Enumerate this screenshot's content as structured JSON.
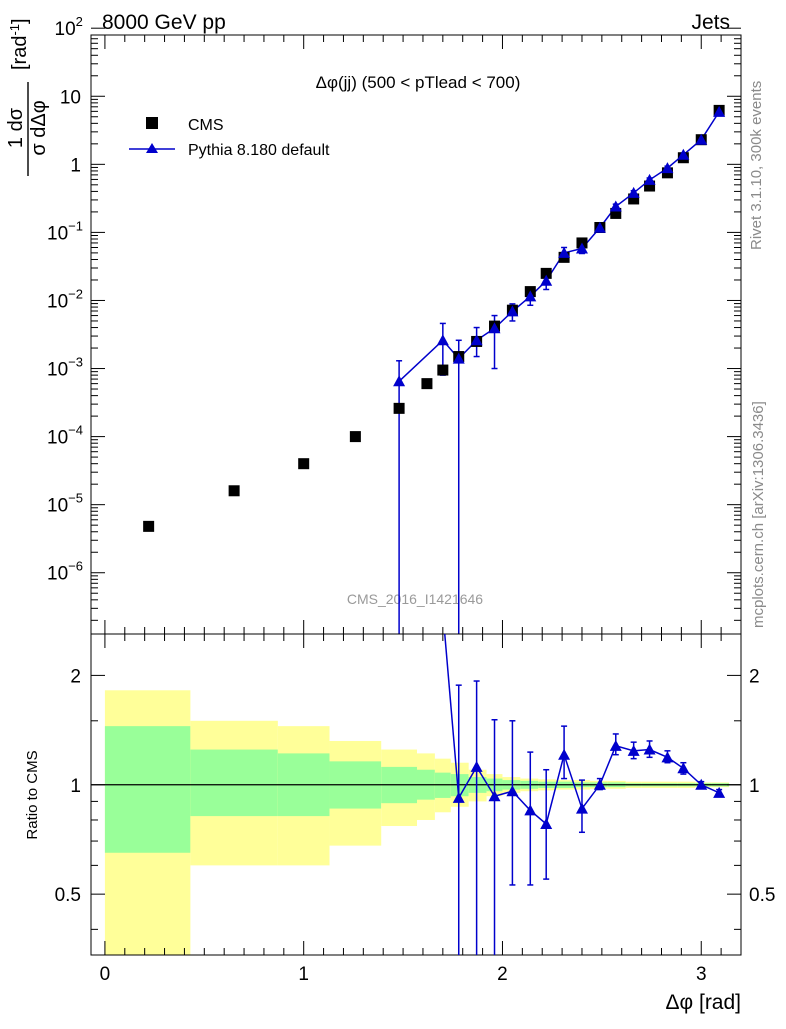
{
  "header": {
    "left": "8000 GeV pp",
    "right": "Jets"
  },
  "side_labels": {
    "rivet": "Rivet 3.1.10,  300k events",
    "mcplots": "mcplots.cern.ch [arXiv:1306.3436]"
  },
  "watermark": "CMS_2016_I1421646",
  "colors": {
    "cms": "#000000",
    "pythia": "#0000cc",
    "band_outer": "#ffff99",
    "band_inner": "#99ff99"
  },
  "chart_data": [
    {
      "type": "scatter",
      "title": "Δφ(jj) (500 < pTlead <  700)",
      "ylabel_parts": {
        "frac_num": "1 dσ",
        "frac_den": "σ dΔφ",
        "unit": "[rad",
        "unit_exp": "-1",
        "unit_close": "]"
      },
      "yscale": "log",
      "xlim": [
        -0.07,
        3.2
      ],
      "ylim_log10": [
        -6.9,
        1.9
      ],
      "y_ticks": [
        {
          "v": -6,
          "label": "10",
          "exp": "−6"
        },
        {
          "v": -5,
          "label": "10",
          "exp": "−5"
        },
        {
          "v": -4,
          "label": "10",
          "exp": "−4"
        },
        {
          "v": -3,
          "label": "10",
          "exp": "−3"
        },
        {
          "v": -2,
          "label": "10",
          "exp": "−2"
        },
        {
          "v": -1,
          "label": "10",
          "exp": "−1"
        },
        {
          "v": 0,
          "label": "1",
          "exp": ""
        },
        {
          "v": 1,
          "label": "10",
          "exp": ""
        },
        {
          "v": 2,
          "label": "10",
          "exp": "2"
        }
      ],
      "legend": [
        {
          "name": "CMS",
          "marker": "square"
        },
        {
          "name": "Pythia 8.180 default",
          "marker": "triangle"
        }
      ],
      "legend_position": "top-left",
      "series": [
        {
          "name": "CMS",
          "x": [
            0.22,
            0.65,
            1.0,
            1.26,
            1.48,
            1.62,
            1.7,
            1.78,
            1.87,
            1.96,
            2.05,
            2.14,
            2.22,
            2.31,
            2.4,
            2.49,
            2.57,
            2.66,
            2.74,
            2.83,
            2.91,
            3.0,
            3.09
          ],
          "y": [
            4.8e-06,
            1.6e-05,
            4e-05,
            0.0001,
            0.00026,
            0.0006,
            0.00095,
            0.0015,
            0.0025,
            0.0042,
            0.0072,
            0.0135,
            0.025,
            0.043,
            0.07,
            0.118,
            0.19,
            0.31,
            0.48,
            0.75,
            1.25,
            2.3,
            6.2
          ]
        },
        {
          "name": "Pythia 8.180 default",
          "x": [
            1.48,
            1.7,
            1.78,
            1.87,
            1.96,
            2.05,
            2.14,
            2.22,
            2.31,
            2.4,
            2.49,
            2.57,
            2.66,
            2.74,
            2.83,
            2.91,
            3.0,
            3.09
          ],
          "y": [
            0.00065,
            0.0026,
            0.0014,
            0.0026,
            0.0039,
            0.0069,
            0.0115,
            0.0195,
            0.05,
            0.058,
            0.117,
            0.24,
            0.38,
            0.59,
            0.88,
            1.38,
            2.3,
            5.9
          ],
          "y_low": [
            1e-09,
            0.0008,
            1e-09,
            0.0015,
            0.001,
            0.005,
            0.0085,
            0.0145,
            0.04,
            0.049,
            0.105,
            0.22,
            0.35,
            0.55,
            0.82,
            1.3,
            2.2,
            5.6
          ],
          "y_high": [
            0.0013,
            0.0046,
            0.0026,
            0.004,
            0.006,
            0.0089,
            0.0145,
            0.0245,
            0.06,
            0.067,
            0.129,
            0.26,
            0.41,
            0.63,
            0.94,
            1.46,
            2.4,
            6.2
          ]
        }
      ]
    },
    {
      "type": "scatter",
      "ylabel": "Ratio to CMS",
      "xlabel": "Δφ [rad]",
      "yscale": "log",
      "xlim": [
        -0.07,
        3.2
      ],
      "ylim": [
        0.34,
        2.6
      ],
      "y_ticks": [
        0.5,
        1,
        2
      ],
      "x_ticks": [
        0,
        1,
        2,
        3
      ],
      "reference_line": 1,
      "bands": {
        "edges": [
          0.0,
          0.43,
          0.87,
          1.13,
          1.39,
          1.57,
          1.66,
          1.74,
          1.83,
          1.92,
          2.0,
          2.09,
          2.18,
          2.27,
          2.36,
          2.44,
          2.53,
          2.62,
          2.7,
          2.79,
          2.88,
          2.97,
          3.05,
          3.14
        ],
        "outer_low": [
          0.2,
          0.6,
          0.6,
          0.68,
          0.77,
          0.8,
          0.84,
          0.87,
          0.9,
          0.93,
          0.95,
          0.96,
          0.965,
          0.97,
          0.97,
          0.975,
          0.975,
          0.98,
          0.98,
          0.98,
          0.98,
          0.985,
          0.985
        ],
        "outer_high": [
          1.82,
          1.5,
          1.45,
          1.32,
          1.25,
          1.22,
          1.18,
          1.15,
          1.1,
          1.07,
          1.05,
          1.04,
          1.035,
          1.03,
          1.03,
          1.025,
          1.025,
          1.02,
          1.02,
          1.02,
          1.02,
          1.015,
          1.015
        ],
        "inner_low": [
          0.65,
          0.82,
          0.82,
          0.86,
          0.89,
          0.91,
          0.92,
          0.93,
          0.95,
          0.96,
          0.97,
          0.975,
          0.98,
          0.98,
          0.985,
          0.985,
          0.985,
          0.99,
          0.99,
          0.99,
          0.99,
          0.99,
          0.99
        ],
        "inner_high": [
          1.45,
          1.25,
          1.22,
          1.16,
          1.12,
          1.1,
          1.08,
          1.07,
          1.05,
          1.04,
          1.03,
          1.025,
          1.02,
          1.02,
          1.015,
          1.015,
          1.015,
          1.01,
          1.01,
          1.01,
          1.01,
          1.01,
          1.01
        ]
      },
      "series": [
        {
          "name": "Pythia 8.180 default",
          "x": [
            1.78,
            1.87,
            1.96,
            2.05,
            2.14,
            2.22,
            2.31,
            2.4,
            2.49,
            2.57,
            2.66,
            2.74,
            2.83,
            2.91,
            3.0,
            3.09
          ],
          "y": [
            0.92,
            1.12,
            0.93,
            0.96,
            0.85,
            0.78,
            1.21,
            0.86,
            1.0,
            1.28,
            1.24,
            1.25,
            1.19,
            1.11,
            1.0,
            0.95
          ],
          "y_low": [
            0.1,
            0.1,
            0.1,
            0.53,
            0.53,
            0.55,
            1.04,
            0.74,
            0.97,
            1.21,
            1.18,
            1.19,
            1.15,
            1.07,
            0.98,
            0.93
          ],
          "y_high": [
            1.88,
            1.93,
            1.51,
            1.5,
            1.23,
            1.1,
            1.45,
            1.03,
            1.04,
            1.38,
            1.31,
            1.32,
            1.24,
            1.15,
            1.02,
            0.97
          ]
        }
      ],
      "offscale_prev": {
        "x": 1.7,
        "y": 3.0
      }
    }
  ]
}
